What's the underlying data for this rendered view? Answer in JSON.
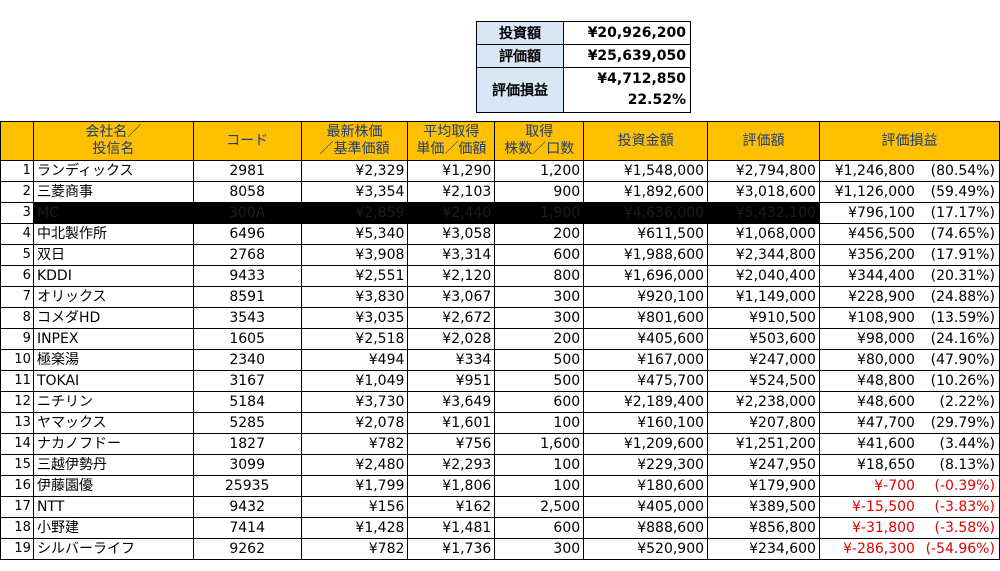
{
  "summary": {
    "invested_label": "投資額",
    "invested_value": "¥20,926,200",
    "valuation_label": "評価額",
    "valuation_value": "¥25,639,050",
    "pl_label": "評価損益",
    "pl_value": "¥4,712,850",
    "pl_pct": "22.52%"
  },
  "headers": {
    "name": "会社名／\n投信名",
    "code": "コード",
    "price": "最新株価\n／基準価額",
    "avg": "平均取得\n単価／価額",
    "qty": "取得\n株数／口数",
    "invest": "投資金額",
    "value": "評価額",
    "pl": "評価損益"
  },
  "rows": [
    {
      "no": "1",
      "name": "ランディックス",
      "code": "2981",
      "price": "¥2,329",
      "avg": "¥1,290",
      "qty": "1,200",
      "invest": "¥1,548,000",
      "value": "¥2,794,800",
      "pl": "¥1,246,800",
      "pct": "(80.54%)"
    },
    {
      "no": "2",
      "name": "三菱商事",
      "code": "8058",
      "price": "¥3,354",
      "avg": "¥2,103",
      "qty": "900",
      "invest": "¥1,892,600",
      "value": "¥3,018,600",
      "pl": "¥1,126,000",
      "pct": "(59.49%)"
    },
    {
      "no": "3",
      "name": "MC",
      "code": "300A",
      "price": "¥2,859",
      "avg": "¥2,440",
      "qty": "1,900",
      "invest": "¥4,636,000",
      "value": "¥5,432,100",
      "pl": "¥796,100",
      "pct": "(17.17%)",
      "redacted": true
    },
    {
      "no": "4",
      "name": "中北製作所",
      "code": "6496",
      "price": "¥5,340",
      "avg": "¥3,058",
      "qty": "200",
      "invest": "¥611,500",
      "value": "¥1,068,000",
      "pl": "¥456,500",
      "pct": "(74.65%)"
    },
    {
      "no": "5",
      "name": "双日",
      "code": "2768",
      "price": "¥3,908",
      "avg": "¥3,314",
      "qty": "600",
      "invest": "¥1,988,600",
      "value": "¥2,344,800",
      "pl": "¥356,200",
      "pct": "(17.91%)"
    },
    {
      "no": "6",
      "name": "KDDI",
      "code": "9433",
      "price": "¥2,551",
      "avg": "¥2,120",
      "qty": "800",
      "invest": "¥1,696,000",
      "value": "¥2,040,400",
      "pl": "¥344,400",
      "pct": "(20.31%)"
    },
    {
      "no": "7",
      "name": "オリックス",
      "code": "8591",
      "price": "¥3,830",
      "avg": "¥3,067",
      "qty": "300",
      "invest": "¥920,100",
      "value": "¥1,149,000",
      "pl": "¥228,900",
      "pct": "(24.88%)"
    },
    {
      "no": "8",
      "name": "コメダHD",
      "code": "3543",
      "price": "¥3,035",
      "avg": "¥2,672",
      "qty": "300",
      "invest": "¥801,600",
      "value": "¥910,500",
      "pl": "¥108,900",
      "pct": "(13.59%)"
    },
    {
      "no": "9",
      "name": "INPEX",
      "code": "1605",
      "price": "¥2,518",
      "avg": "¥2,028",
      "qty": "200",
      "invest": "¥405,600",
      "value": "¥503,600",
      "pl": "¥98,000",
      "pct": "(24.16%)"
    },
    {
      "no": "10",
      "name": "極楽湯",
      "code": "2340",
      "price": "¥494",
      "avg": "¥334",
      "qty": "500",
      "invest": "¥167,000",
      "value": "¥247,000",
      "pl": "¥80,000",
      "pct": "(47.90%)"
    },
    {
      "no": "11",
      "name": "TOKAI",
      "code": "3167",
      "price": "¥1,049",
      "avg": "¥951",
      "qty": "500",
      "invest": "¥475,700",
      "value": "¥524,500",
      "pl": "¥48,800",
      "pct": "(10.26%)"
    },
    {
      "no": "12",
      "name": "ニチリン",
      "code": "5184",
      "price": "¥3,730",
      "avg": "¥3,649",
      "qty": "600",
      "invest": "¥2,189,400",
      "value": "¥2,238,000",
      "pl": "¥48,600",
      "pct": "(2.22%)"
    },
    {
      "no": "13",
      "name": "ヤマックス",
      "code": "5285",
      "price": "¥2,078",
      "avg": "¥1,601",
      "qty": "100",
      "invest": "¥160,100",
      "value": "¥207,800",
      "pl": "¥47,700",
      "pct": "(29.79%)"
    },
    {
      "no": "14",
      "name": "ナカノフドー",
      "code": "1827",
      "price": "¥782",
      "avg": "¥756",
      "qty": "1,600",
      "invest": "¥1,209,600",
      "value": "¥1,251,200",
      "pl": "¥41,600",
      "pct": "(3.44%)"
    },
    {
      "no": "15",
      "name": "三越伊勢丹",
      "code": "3099",
      "price": "¥2,480",
      "avg": "¥2,293",
      "qty": "100",
      "invest": "¥229,300",
      "value": "¥247,950",
      "pl": "¥18,650",
      "pct": "(8.13%)"
    },
    {
      "no": "16",
      "name": "伊藤園優",
      "code": "25935",
      "price": "¥1,799",
      "avg": "¥1,806",
      "qty": "100",
      "invest": "¥180,600",
      "value": "¥179,900",
      "pl": "¥-700",
      "pct": "(-0.39%)",
      "loss": true
    },
    {
      "no": "17",
      "name": "NTT",
      "code": "9432",
      "price": "¥156",
      "avg": "¥162",
      "qty": "2,500",
      "invest": "¥405,000",
      "value": "¥389,500",
      "pl": "¥-15,500",
      "pct": "(-3.83%)",
      "loss": true
    },
    {
      "no": "18",
      "name": "小野建",
      "code": "7414",
      "price": "¥1,428",
      "avg": "¥1,481",
      "qty": "600",
      "invest": "¥888,600",
      "value": "¥856,800",
      "pl": "¥-31,800",
      "pct": "(-3.58%)",
      "loss": true
    },
    {
      "no": "19",
      "name": "シルバーライフ",
      "code": "9262",
      "price": "¥782",
      "avg": "¥1,736",
      "qty": "300",
      "invest": "¥520,900",
      "value": "¥234,600",
      "pl": "¥-286,300",
      "pct": "(-54.96%)",
      "loss": true
    }
  ]
}
